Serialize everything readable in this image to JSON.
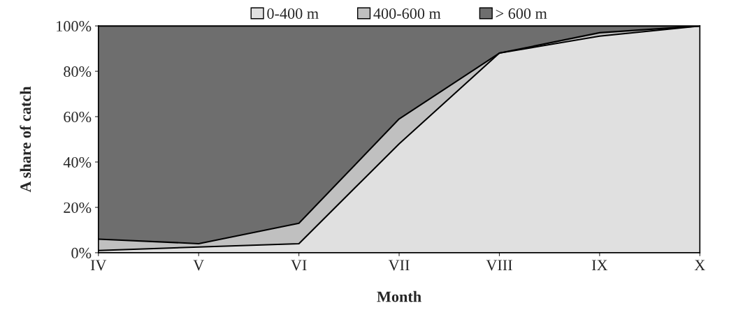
{
  "chart_data": {
    "type": "area",
    "stacked": true,
    "xlabel": "Month",
    "ylabel": "A share of catch",
    "categories": [
      "IV",
      "V",
      "VI",
      "VII",
      "VIII",
      "IX",
      "X"
    ],
    "series": [
      {
        "name": "0-400 m",
        "color": "#e0e0e0",
        "values": [
          1,
          2.5,
          4,
          48,
          88,
          95.5,
          100
        ]
      },
      {
        "name": "400-600 m",
        "color": "#c0c0c0",
        "values": [
          5,
          1.5,
          9,
          11,
          0,
          1.5,
          0
        ]
      },
      {
        "name": "> 600 m",
        "color": "#6e6e6e",
        "values": [
          94,
          96,
          87,
          41,
          12,
          3,
          0
        ]
      }
    ],
    "ylim": [
      0,
      100
    ],
    "yticks": [
      {
        "value": 0,
        "label": "0%"
      },
      {
        "value": 20,
        "label": "20%"
      },
      {
        "value": 40,
        "label": "40%"
      },
      {
        "value": 60,
        "label": "60%"
      },
      {
        "value": 80,
        "label": "80%"
      },
      {
        "value": 100,
        "label": "100%"
      }
    ],
    "legend": "top"
  }
}
